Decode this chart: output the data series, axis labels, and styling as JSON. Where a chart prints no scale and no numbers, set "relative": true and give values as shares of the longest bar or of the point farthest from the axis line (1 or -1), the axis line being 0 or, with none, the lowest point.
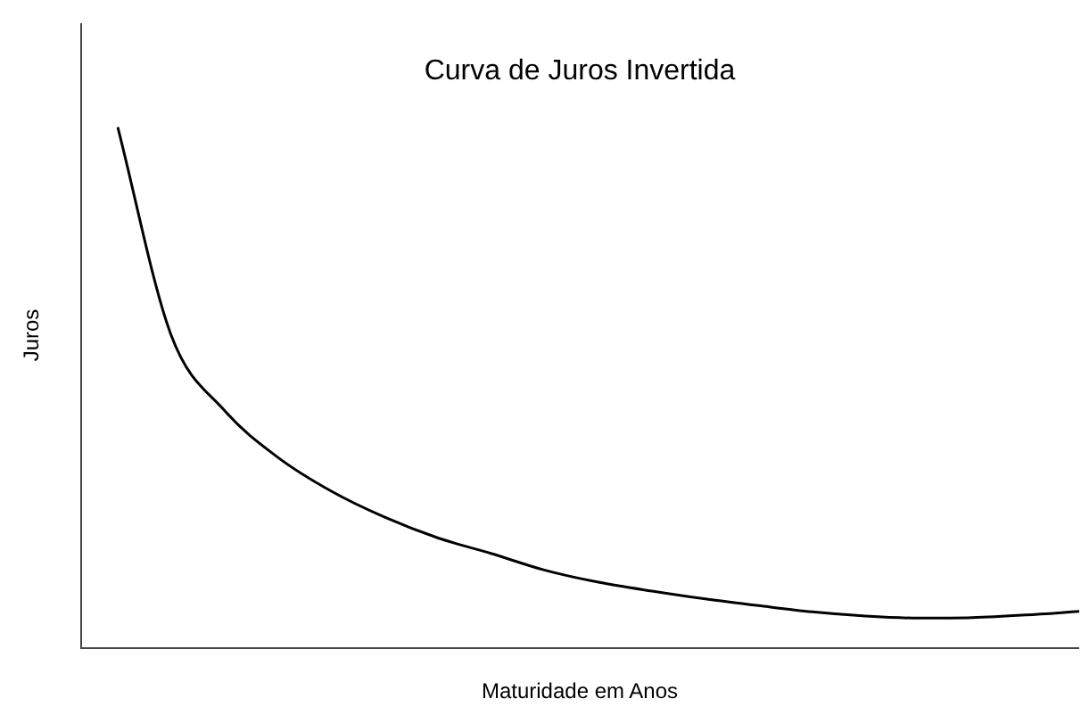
{
  "chart_data": {
    "type": "line",
    "title": "Curva de Juros Invertida",
    "xlabel": "Maturidade em Anos",
    "ylabel": "Juros",
    "relative": true,
    "color": "#000000",
    "marker": "none",
    "legend": false,
    "categories": [
      null,
      null,
      null,
      null,
      null,
      null,
      null,
      null,
      null,
      null,
      null,
      null,
      null,
      null,
      null,
      null,
      null,
      null,
      null
    ],
    "values": [
      1.0,
      0.6,
      0.455,
      0.365,
      0.3,
      0.25,
      0.21,
      0.18,
      0.148,
      0.125,
      0.108,
      0.093,
      0.08,
      0.068,
      0.06,
      0.056,
      0.057,
      0.062,
      0.069
    ]
  }
}
